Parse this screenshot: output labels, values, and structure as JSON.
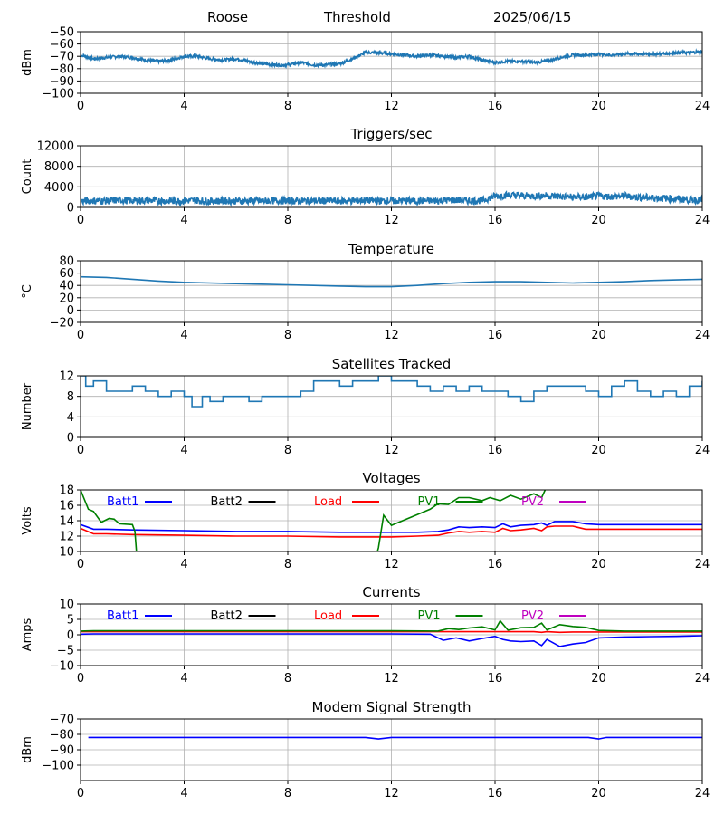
{
  "header": {
    "station": "Roose",
    "mode": "Threshold",
    "date": "2025/06/15"
  },
  "chart_data": [
    {
      "type": "line",
      "title": "",
      "ylabel": "dBm",
      "xlim": [
        0,
        24
      ],
      "ylim": [
        -100,
        -50
      ],
      "xticks": [
        0,
        4,
        8,
        12,
        16,
        20,
        24
      ],
      "yticks": [
        -50,
        -60,
        -70,
        -80,
        -90,
        -100
      ],
      "grid": true,
      "noise": 1.2,
      "series": [
        {
          "color": "#1f77b4",
          "x": [
            0,
            0.5,
            1,
            1.5,
            2,
            2.5,
            3,
            3.5,
            4,
            4.5,
            5,
            5.5,
            6,
            6.5,
            7,
            7.5,
            8,
            8.5,
            9,
            9.5,
            10,
            10.5,
            11,
            11.5,
            12,
            12.5,
            13,
            13.5,
            14,
            14.5,
            15,
            15.5,
            16,
            16.5,
            17,
            17.5,
            18,
            18.5,
            19,
            19.5,
            20,
            20.5,
            21,
            21.5,
            22,
            22.5,
            23,
            23.5,
            24
          ],
          "y": [
            -69,
            -72,
            -71,
            -70,
            -71,
            -73,
            -74,
            -73,
            -70,
            -70,
            -72,
            -73,
            -72,
            -74,
            -76,
            -77,
            -77,
            -75,
            -77,
            -77,
            -76,
            -72,
            -67,
            -67,
            -68,
            -69,
            -70,
            -69,
            -70,
            -71,
            -70,
            -73,
            -75,
            -74,
            -74,
            -75,
            -74,
            -71,
            -69,
            -69,
            -68,
            -69,
            -68,
            -68,
            -68,
            -68,
            -67,
            -67,
            -66
          ]
        }
      ]
    },
    {
      "type": "line",
      "title": "Triggers/sec",
      "ylabel": "Count",
      "xlim": [
        0,
        24
      ],
      "ylim": [
        0,
        12000
      ],
      "xticks": [
        0,
        4,
        8,
        12,
        16,
        20,
        24
      ],
      "yticks": [
        0,
        4000,
        8000,
        12000
      ],
      "grid": true,
      "noise": 700,
      "series": [
        {
          "color": "#1f77b4",
          "x": [
            0,
            0.5,
            1,
            1.5,
            2,
            2.5,
            3,
            3.5,
            4,
            4.5,
            5,
            5.5,
            6,
            6.5,
            7,
            7.5,
            8,
            8.5,
            9,
            9.5,
            10,
            10.5,
            11,
            11.5,
            12,
            12.5,
            13,
            13.5,
            14,
            14.5,
            15,
            15.5,
            16,
            16.5,
            17,
            17.5,
            18,
            18.5,
            19,
            19.5,
            20,
            20.5,
            21,
            21.5,
            22,
            22.5,
            23,
            23.5,
            24
          ],
          "y": [
            1200,
            1300,
            1250,
            1400,
            1300,
            1350,
            1300,
            1250,
            1300,
            1350,
            1200,
            1300,
            1250,
            1300,
            1250,
            1300,
            1300,
            1250,
            1300,
            1300,
            1250,
            1300,
            1400,
            1250,
            1300,
            1300,
            1250,
            1300,
            1350,
            1400,
            1300,
            1350,
            2200,
            2400,
            2300,
            2200,
            2300,
            2100,
            2000,
            2000,
            2200,
            2100,
            2200,
            2000,
            1900,
            1800,
            1700,
            1500,
            1400
          ]
        }
      ]
    },
    {
      "type": "line",
      "title": "Temperature",
      "ylabel": "°C",
      "xlim": [
        0,
        24
      ],
      "ylim": [
        -20,
        80
      ],
      "xticks": [
        0,
        4,
        8,
        12,
        16,
        20,
        24
      ],
      "yticks": [
        -20,
        0,
        20,
        40,
        60,
        80
      ],
      "grid": true,
      "noise": 0,
      "series": [
        {
          "color": "#1f77b4",
          "x": [
            0,
            1,
            2,
            3,
            4,
            5,
            6,
            7,
            8,
            9,
            10,
            11,
            12,
            13,
            14,
            15,
            16,
            17,
            18,
            19,
            20,
            21,
            22,
            23,
            24
          ],
          "y": [
            54,
            53,
            50,
            47,
            45,
            44,
            43,
            42,
            41,
            40,
            39,
            38,
            38,
            40,
            43,
            45,
            46,
            46,
            45,
            44,
            45,
            46,
            48,
            49,
            50
          ]
        }
      ]
    },
    {
      "type": "line",
      "title": "Satellites Tracked",
      "ylabel": "Number",
      "xlim": [
        0,
        24
      ],
      "ylim": [
        0,
        12
      ],
      "xticks": [
        0,
        4,
        8,
        12,
        16,
        20,
        24
      ],
      "yticks": [
        0,
        4,
        8,
        12
      ],
      "grid": true,
      "noise": 0,
      "step": true,
      "series": [
        {
          "color": "#1f77b4",
          "x": [
            0,
            0.2,
            0.5,
            1,
            1.5,
            2,
            2.5,
            3,
            3.5,
            4,
            4.3,
            4.7,
            5,
            5.5,
            6,
            6.5,
            7,
            7.5,
            8,
            8.5,
            9,
            9.5,
            10,
            10.5,
            11,
            11.5,
            12,
            12.5,
            13,
            13.5,
            14,
            14.5,
            15,
            15.5,
            16,
            16.5,
            17,
            17.5,
            18,
            18.5,
            19,
            19.5,
            20,
            20.5,
            21,
            21.5,
            22,
            22.5,
            23,
            23.5,
            24
          ],
          "y": [
            12,
            10,
            11,
            9,
            9,
            10,
            9,
            8,
            9,
            8,
            6,
            8,
            7,
            8,
            8,
            7,
            8,
            8,
            8,
            9,
            11,
            11,
            10,
            11,
            11,
            12,
            11,
            11,
            10,
            9,
            10,
            9,
            10,
            9,
            9,
            8,
            7,
            9,
            10,
            10,
            10,
            9,
            8,
            10,
            11,
            9,
            8,
            9,
            8,
            10,
            11
          ]
        }
      ]
    },
    {
      "type": "line",
      "title": "Voltages",
      "ylabel": "Volts",
      "xlim": [
        0,
        24
      ],
      "ylim": [
        10,
        18
      ],
      "xticks": [
        0,
        4,
        8,
        12,
        16,
        20,
        24
      ],
      "yticks": [
        10,
        12,
        14,
        16,
        18
      ],
      "grid": true,
      "noise": 0,
      "legend_position": "top",
      "series": [
        {
          "name": "Batt1",
          "color": "#0000ff",
          "x": [
            0,
            0.5,
            1,
            2,
            4,
            6,
            8,
            10,
            12,
            13,
            13.8,
            14.2,
            14.6,
            15,
            15.5,
            16,
            16.3,
            16.6,
            17,
            17.5,
            17.8,
            18,
            18.3,
            19,
            19.5,
            20,
            21,
            22,
            23,
            24
          ],
          "y": [
            13.5,
            12.9,
            12.9,
            12.8,
            12.7,
            12.6,
            12.6,
            12.5,
            12.5,
            12.5,
            12.6,
            12.8,
            13.2,
            13.1,
            13.2,
            13.1,
            13.6,
            13.2,
            13.4,
            13.5,
            13.7,
            13.4,
            13.9,
            13.9,
            13.6,
            13.5,
            13.5,
            13.5,
            13.5,
            13.5
          ]
        },
        {
          "name": "Batt2",
          "color": "#000000",
          "x": [],
          "y": []
        },
        {
          "name": "Load",
          "color": "#ff0000",
          "x": [
            0,
            0.5,
            1,
            2,
            4,
            6,
            8,
            10,
            12,
            13,
            13.8,
            14.2,
            14.6,
            15,
            15.5,
            16,
            16.3,
            16.6,
            17,
            17.5,
            17.8,
            18,
            18.3,
            19,
            19.5,
            20,
            21,
            22,
            23,
            24
          ],
          "y": [
            13.0,
            12.3,
            12.3,
            12.2,
            12.1,
            12.0,
            12.0,
            11.9,
            11.9,
            12.0,
            12.1,
            12.4,
            12.6,
            12.5,
            12.6,
            12.5,
            13.0,
            12.7,
            12.8,
            13.0,
            12.7,
            13.2,
            13.3,
            13.3,
            12.9,
            12.9,
            12.9,
            12.9,
            12.9,
            12.9
          ]
        },
        {
          "name": "PV1",
          "color": "#008000",
          "x": [
            0,
            0.3,
            0.5,
            0.8,
            1.1,
            1.3,
            1.5,
            2,
            2.1,
            2.2,
            11.3,
            11.5,
            11.7,
            12,
            13,
            13.5,
            13.8,
            14.2,
            14.6,
            15,
            15.5,
            15.8,
            16.2,
            16.6,
            17,
            17.5,
            17.8,
            18,
            18.3
          ],
          "y": [
            18,
            15.5,
            15.2,
            13.8,
            14.3,
            14.2,
            13.6,
            13.5,
            12.6,
            8,
            8,
            10.5,
            14.7,
            13.4,
            14.8,
            15.5,
            16.2,
            16.1,
            17.0,
            17.0,
            16.6,
            17.0,
            16.6,
            17.3,
            16.8,
            17.5,
            17.0,
            18.5,
            19
          ]
        },
        {
          "name": "PV2",
          "color": "#bf00bf",
          "x": [],
          "y": []
        }
      ]
    },
    {
      "type": "line",
      "title": "Currents",
      "ylabel": "Amps",
      "xlim": [
        0,
        24
      ],
      "ylim": [
        -10,
        10
      ],
      "xticks": [
        0,
        4,
        8,
        12,
        16,
        20,
        24
      ],
      "yticks": [
        -10,
        -5,
        0,
        5,
        10
      ],
      "grid": true,
      "noise": 0,
      "legend_position": "top",
      "series": [
        {
          "name": "Batt1",
          "color": "#0000ff",
          "x": [
            0,
            0.5,
            1,
            4,
            8,
            12,
            13.5,
            14,
            14.5,
            15,
            15.5,
            16,
            16.3,
            16.6,
            17,
            17.5,
            17.8,
            18,
            18.5,
            19,
            19.5,
            20,
            21,
            22,
            23,
            24
          ],
          "y": [
            0.2,
            0.3,
            0.3,
            0.3,
            0.3,
            0.3,
            0.2,
            -1.8,
            -1.0,
            -2.0,
            -1.2,
            -0.5,
            -1.5,
            -2.0,
            -2.2,
            -2.0,
            -3.5,
            -1.5,
            -3.8,
            -3.0,
            -2.5,
            -1.0,
            -0.7,
            -0.6,
            -0.5,
            -0.3
          ]
        },
        {
          "name": "Batt2",
          "color": "#000000",
          "x": [],
          "y": []
        },
        {
          "name": "Load",
          "color": "#ff0000",
          "x": [
            0,
            0.5,
            1,
            4,
            8,
            12,
            13.5,
            14,
            15,
            16,
            16.5,
            17,
            17.5,
            17.8,
            18,
            18.5,
            19,
            20,
            24
          ],
          "y": [
            1.0,
            1.0,
            1.0,
            1.0,
            1.0,
            1.0,
            1.0,
            1.0,
            1.0,
            1.0,
            1.0,
            1.0,
            1.0,
            0.8,
            1.0,
            0.8,
            0.9,
            0.9,
            0.9
          ]
        },
        {
          "name": "PV1",
          "color": "#008000",
          "x": [
            0,
            0.5,
            1,
            4,
            8,
            12,
            13.8,
            14.2,
            14.6,
            15,
            15.5,
            16,
            16.2,
            16.5,
            17,
            17.5,
            17.8,
            18,
            18.5,
            19,
            19.5,
            20,
            21,
            22,
            23,
            24
          ],
          "y": [
            1.2,
            1.3,
            1.3,
            1.3,
            1.3,
            1.3,
            1.2,
            2.0,
            1.7,
            2.2,
            2.6,
            1.6,
            4.5,
            1.5,
            2.3,
            2.4,
            3.8,
            1.6,
            3.3,
            2.7,
            2.4,
            1.4,
            1.2,
            1.2,
            1.2,
            1.2
          ]
        },
        {
          "name": "PV2",
          "color": "#bf00bf",
          "x": [],
          "y": []
        }
      ]
    },
    {
      "type": "line",
      "title": "Modem Signal Strength",
      "ylabel": "dBm",
      "xlim": [
        0,
        24
      ],
      "ylim": [
        -110,
        -70
      ],
      "xticks": [
        0,
        4,
        8,
        12,
        16,
        20,
        24
      ],
      "yticks": [
        -70,
        -80,
        -90,
        -100
      ],
      "grid": true,
      "noise": 0,
      "series": [
        {
          "color": "#0000ff",
          "x": [
            0.3,
            2,
            4,
            6,
            8,
            10,
            11,
            11.5,
            12,
            14,
            16,
            18,
            19.6,
            20,
            20.3,
            22,
            24
          ],
          "y": [
            -82,
            -82,
            -82,
            -82,
            -82,
            -82,
            -82,
            -83,
            -82,
            -82,
            -82,
            -82,
            -82,
            -83,
            -82,
            -82,
            -82
          ]
        }
      ]
    }
  ]
}
